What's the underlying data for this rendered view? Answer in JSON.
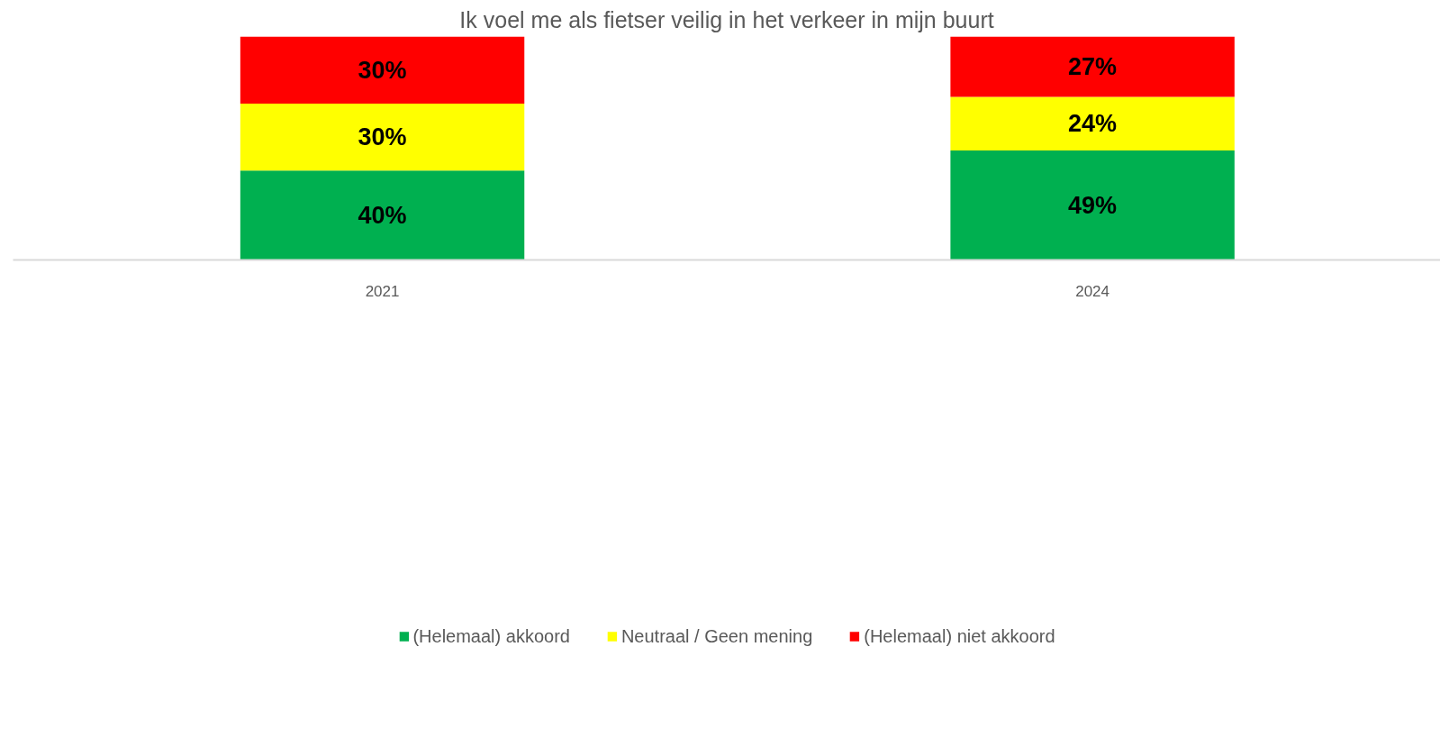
{
  "chart_data": {
    "type": "bar",
    "title": "Ik voel me als fietser veilig in het verkeer in mijn buurt",
    "categories": [
      "2021",
      "2024"
    ],
    "stacked": true,
    "series": [
      {
        "name": "(Helemaal) akkoord",
        "color": "#00b050",
        "values": [
          40,
          49
        ],
        "value_labels": [
          "40%",
          "49%"
        ]
      },
      {
        "name": "Neutraal / Geen mening",
        "color": "#ffff00",
        "values": [
          30,
          24
        ],
        "value_labels": [
          "30%",
          "24%"
        ]
      },
      {
        "name": "(Helemaal) niet akkoord",
        "color": "#ff0000",
        "values": [
          30,
          27
        ],
        "value_labels": [
          "30%",
          "27%"
        ]
      }
    ],
    "legend": "bottom",
    "grid": false
  }
}
